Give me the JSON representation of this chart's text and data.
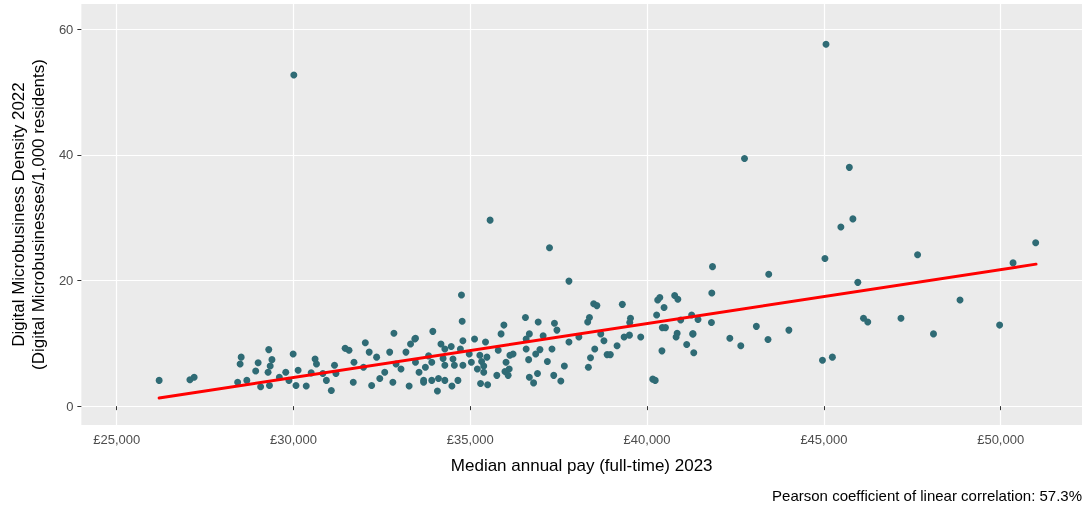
{
  "chart_data": {
    "type": "scatter",
    "xlabel": "Median annual pay (full-time) 2023",
    "ylabel": "Digital Microbusiness Density 2022\n(Digital Microbusinesses/1,000 residents)",
    "annotations": [
      "Pearson coefficient of linear correlation: 57.3%"
    ],
    "xlim": [
      24000,
      52300
    ],
    "ylim": [
      -3,
      64
    ],
    "xticks": [
      {
        "value": 25000,
        "label": "£25,000"
      },
      {
        "value": 30000,
        "label": "£30,000"
      },
      {
        "value": 35000,
        "label": "£35,000"
      },
      {
        "value": 40000,
        "label": "£40,000"
      },
      {
        "value": 45000,
        "label": "£45,000"
      },
      {
        "value": 50000,
        "label": "£50,000"
      }
    ],
    "yticks": [
      0,
      20,
      40,
      60
    ],
    "grid": true,
    "marker": "circle",
    "series": [
      {
        "color": "#2f6b75",
        "x": [
          45060,
          42755,
          45720,
          45820,
          45480,
          45030,
          47650,
          50990,
          50350,
          41850,
          41830,
          43440,
          45960,
          48850,
          41820,
          41260,
          41440,
          41300,
          41120,
          41320,
          42340,
          42650,
          43090,
          43420,
          44010,
          44960,
          45240,
          46120,
          46240,
          47180,
          48100,
          49970,
          35560,
          37240,
          37790,
          34750,
          34770,
          33940,
          33430,
          35120,
          35430,
          35950,
          35870,
          36560,
          36920,
          37380,
          37450,
          36670,
          37060,
          38370,
          38320,
          38490,
          38580,
          39300,
          39530,
          39510,
          40300,
          40360,
          40480,
          40270,
          40780,
          40870,
          40950,
          40430,
          40520,
          40850,
          40820,
          41290,
          40420,
          40160,
          40230,
          39820,
          39350,
          39500,
          39150,
          38870,
          38960,
          38520,
          38690,
          38780,
          38400,
          38340,
          38070,
          37790,
          37310,
          36970,
          36850,
          36650,
          37180,
          37660,
          37360,
          37560,
          36900,
          36670,
          36790,
          36580,
          36580,
          36210,
          36120,
          36010,
          36100,
          35980,
          36070,
          35750,
          35790,
          35270,
          35470,
          35320,
          35380,
          35200,
          35380,
          35290,
          35490,
          34970,
          35030,
          34790,
          34720,
          34790,
          34460,
          34510,
          34550,
          34170,
          34280,
          34230,
          34280,
          34100,
          34280,
          34480,
          34650,
          34070,
          33910,
          33680,
          33910,
          33730,
          33550,
          33820,
          26200,
          27070,
          27190,
          28520,
          28490,
          28420,
          28680,
          29000,
          28930,
          29070,
          29300,
          29390,
          29340,
          29280,
          29320,
          29990,
          29600,
          29780,
          29870,
          30130,
          30070,
          30360,
          30500,
          30610,
          30650,
          30830,
          30930,
          31070,
          31160,
          31200,
          31460,
          31570,
          31710,
          31690,
          31980,
          32030,
          32140,
          32210,
          32350,
          32440,
          32580,
          32720,
          32840,
          32900,
          32810,
          33270,
          33310,
          33450,
          33450,
          33680,
          33040,
          33180,
          30009
        ],
        "values": [
          57.6,
          39.4,
          38.0,
          29.8,
          28.5,
          23.5,
          24.1,
          26.0,
          22.8,
          22.2,
          18.0,
          21.0,
          19.7,
          16.9,
          13.3,
          14.5,
          13.8,
          11.5,
          9.8,
          8.5,
          10.8,
          9.6,
          12.7,
          10.6,
          12.1,
          7.3,
          7.8,
          14.0,
          13.4,
          14.0,
          11.5,
          12.9,
          29.6,
          25.2,
          19.9,
          17.7,
          13.5,
          11.9,
          10.7,
          10.7,
          10.2,
          12.9,
          11.5,
          14.1,
          13.4,
          13.2,
          12.1,
          11.5,
          11.2,
          14.1,
          13.4,
          16.3,
          16.0,
          16.2,
          14.0,
          13.3,
          16.9,
          17.3,
          15.7,
          14.5,
          17.6,
          17.0,
          13.7,
          12.5,
          12.5,
          11.6,
          11.0,
          11.5,
          8.8,
          4.3,
          4.1,
          11.0,
          11.0,
          11.3,
          9.6,
          8.2,
          8.2,
          9.1,
          11.5,
          10.4,
          7.7,
          6.2,
          11.0,
          10.2,
          9.1,
          9.0,
          8.3,
          7.4,
          7.1,
          6.4,
          4.9,
          4.0,
          5.2,
          4.6,
          3.7,
          9.1,
          10.7,
          8.3,
          8.1,
          7.0,
          5.9,
          5.5,
          4.9,
          4.9,
          8.9,
          8.1,
          7.8,
          7.1,
          6.4,
          5.9,
          5.4,
          3.6,
          3.4,
          8.3,
          7.0,
          10.4,
          9.1,
          6.5,
          9.5,
          7.5,
          6.5,
          9.9,
          9.1,
          7.6,
          6.5,
          4.4,
          4.1,
          3.2,
          4.1,
          2.4,
          4.1,
          3.8,
          7.0,
          6.2,
          5.4,
          8.0,
          4.1,
          4.2,
          4.6,
          7.8,
          6.7,
          3.8,
          4.1,
          6.9,
          5.6,
          3.1,
          9.0,
          7.4,
          6.4,
          5.4,
          3.3,
          8.3,
          4.6,
          5.4,
          4.1,
          5.7,
          3.3,
          3.2,
          5.3,
          7.5,
          6.7,
          5.2,
          4.1,
          2.5,
          6.5,
          5.2,
          9.2,
          8.9,
          7.0,
          3.8,
          6.2,
          10.1,
          8.6,
          3.3,
          7.8,
          4.4,
          5.4,
          8.6,
          11.6,
          6.7,
          3.8,
          3.2,
          9.9,
          10.8,
          7.0,
          4.1,
          5.9,
          8.6,
          52.7
        ]
      },
      {
        "type": "line",
        "color": "#ff0000",
        "marker": "none",
        "line_style": "solid",
        "x": [
          26200,
          51000
        ],
        "values": [
          1.3,
          22.6
        ]
      }
    ]
  }
}
